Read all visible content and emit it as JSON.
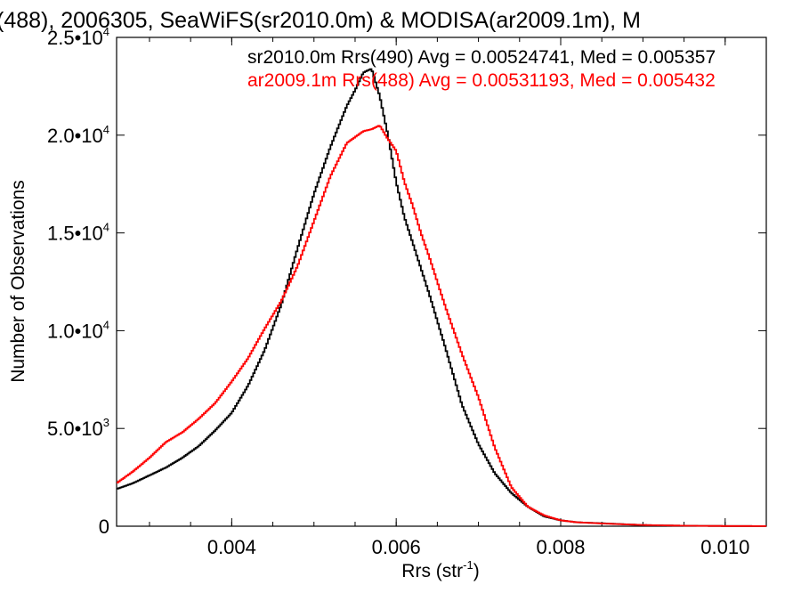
{
  "chart_data": {
    "type": "line",
    "title": "(488), 2006305, SeaWiFS(sr2010.0m) & MODISA(ar2009.1m), M",
    "xlabel": "Rrs (str",
    "xlabel_sup": "-1",
    "xlabel_end": ")",
    "ylabel": "Number of Observations",
    "xlim": [
      0.0026,
      0.0105
    ],
    "ylim": [
      0,
      25000
    ],
    "grid": false,
    "xticks": [
      {
        "value": 0.004,
        "label": "0.004"
      },
      {
        "value": 0.006,
        "label": "0.006"
      },
      {
        "value": 0.008,
        "label": "0.008"
      },
      {
        "value": 0.01,
        "label": "0.010"
      }
    ],
    "yticks": [
      {
        "value": 0,
        "mant": "0",
        "exp": ""
      },
      {
        "value": 5000,
        "mant": "5.0•10",
        "exp": "3"
      },
      {
        "value": 10000,
        "mant": "1.0•10",
        "exp": "4"
      },
      {
        "value": 15000,
        "mant": "1.5•10",
        "exp": "4"
      },
      {
        "value": 20000,
        "mant": "2.0•10",
        "exp": "4"
      },
      {
        "value": 25000,
        "mant": "2.5•10",
        "exp": "4"
      }
    ],
    "legend_position": "top-right",
    "series": [
      {
        "name": "sr2010.0m Rrs(490) Avg = 0.00524741, Med = 0.005357",
        "color": "#000000",
        "x": [
          0.0026,
          0.0028,
          0.003,
          0.0032,
          0.0034,
          0.0036,
          0.0038,
          0.004,
          0.0042,
          0.0044,
          0.0046,
          0.0048,
          0.005,
          0.0052,
          0.0054,
          0.0055,
          0.0056,
          0.0057,
          0.0058,
          0.0059,
          0.006,
          0.0061,
          0.0062,
          0.0063,
          0.0064,
          0.0066,
          0.0068,
          0.007,
          0.0072,
          0.0074,
          0.0076,
          0.0078,
          0.008,
          0.0082,
          0.0085,
          0.009,
          0.0095,
          0.01,
          0.0105
        ],
        "y": [
          1900,
          2200,
          2600,
          3000,
          3500,
          4100,
          4900,
          5800,
          7200,
          9000,
          11300,
          14200,
          17000,
          19400,
          21500,
          22300,
          23200,
          23400,
          22000,
          20000,
          17600,
          15800,
          14500,
          13200,
          11900,
          9100,
          6200,
          4200,
          2700,
          1700,
          1000,
          500,
          300,
          200,
          150,
          60,
          25,
          10,
          5
        ]
      },
      {
        "name": "ar2009.1m Rrs(488) Avg = 0.00531193, Med = 0.005432",
        "color": "#ff0000",
        "x": [
          0.0026,
          0.0028,
          0.003,
          0.0032,
          0.0034,
          0.0036,
          0.0038,
          0.004,
          0.0042,
          0.0044,
          0.0046,
          0.0048,
          0.005,
          0.0052,
          0.0054,
          0.0055,
          0.0056,
          0.0057,
          0.0058,
          0.0059,
          0.006,
          0.0061,
          0.0062,
          0.0063,
          0.0064,
          0.0066,
          0.0068,
          0.007,
          0.0072,
          0.0074,
          0.0076,
          0.0078,
          0.008,
          0.0082,
          0.0085,
          0.009,
          0.0095,
          0.01,
          0.0105
        ],
        "y": [
          2200,
          2800,
          3500,
          4300,
          4800,
          5500,
          6300,
          7400,
          8600,
          10100,
          11500,
          13300,
          15600,
          17900,
          19600,
          19900,
          20200,
          20300,
          20500,
          19800,
          19200,
          17600,
          16400,
          15000,
          13800,
          11200,
          8800,
          6600,
          4000,
          2000,
          1000,
          550,
          300,
          200,
          140,
          60,
          25,
          10,
          5
        ]
      }
    ]
  }
}
